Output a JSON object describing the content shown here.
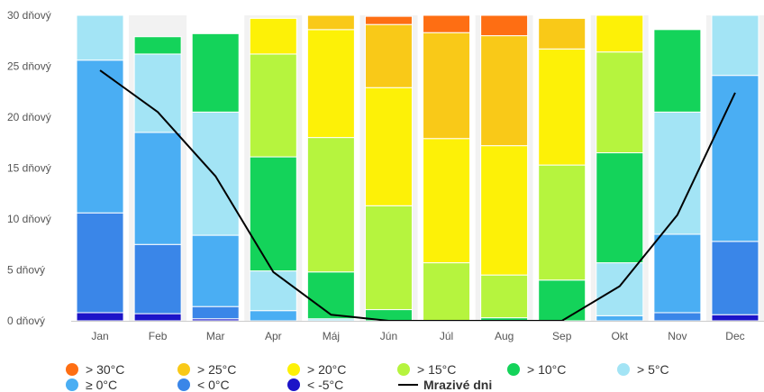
{
  "chart_data": {
    "type": "bar",
    "stacked": true,
    "categories": [
      "Jan",
      "Feb",
      "Mar",
      "Apr",
      "Máj",
      "Jún",
      "Júl",
      "Aug",
      "Sep",
      "Okt",
      "Nov",
      "Dec"
    ],
    "y_ticks": [
      "0 dňový",
      "5 dňový",
      "10 dňový",
      "15 dňový",
      "20 dňový",
      "25 dňový",
      "30 dňový"
    ],
    "ylim": [
      0,
      30
    ],
    "grid": false,
    "legend_position": "bottom",
    "series": [
      {
        "name": "< -5°C",
        "color": "#1c14c8",
        "values": [
          0.8,
          0.7,
          0.2,
          0,
          0,
          0,
          0,
          0,
          0,
          0,
          0,
          0.6
        ]
      },
      {
        "name": "< 0°C",
        "color": "#3a86e8",
        "values": [
          9.8,
          6.8,
          1.2,
          0,
          0,
          0,
          0,
          0,
          0,
          0,
          0.8,
          7.2
        ]
      },
      {
        "name": "≥ 0°C",
        "color": "#4aaef3",
        "values": [
          15.0,
          11.0,
          7.0,
          1.0,
          0,
          0,
          0,
          0,
          0,
          0.5,
          7.7,
          16.3
        ]
      },
      {
        "name": "> 5°C",
        "color": "#a3e4f5",
        "values": [
          4.4,
          7.7,
          12.1,
          3.9,
          0.2,
          0,
          0,
          0,
          0,
          5.2,
          12.0,
          5.9
        ]
      },
      {
        "name": "> 10°C",
        "color": "#14d35a",
        "values": [
          0,
          1.7,
          7.7,
          11.2,
          4.6,
          1.1,
          0,
          0.3,
          4.0,
          10.8,
          8.1,
          0
        ]
      },
      {
        "name": "> 15°C",
        "color": "#b6f43e",
        "values": [
          0,
          0,
          0,
          10.1,
          13.2,
          10.2,
          5.7,
          4.2,
          11.3,
          9.9,
          0,
          0
        ]
      },
      {
        "name": "> 20°C",
        "color": "#fdf107",
        "values": [
          0,
          0,
          0,
          3.5,
          10.6,
          11.6,
          12.2,
          12.7,
          11.4,
          3.6,
          0,
          0
        ]
      },
      {
        "name": "> 25°C",
        "color": "#f9c918",
        "values": [
          0,
          0,
          0,
          0,
          1.4,
          6.2,
          10.4,
          10.8,
          3.0,
          0,
          0,
          0
        ]
      },
      {
        "name": "> 30°C",
        "color": "#fe6e13",
        "values": [
          0,
          0,
          0,
          0,
          0,
          0.8,
          1.7,
          2.0,
          0,
          0,
          0,
          0
        ]
      }
    ],
    "line_series": {
      "name": "Mrazivé dni",
      "color": "#000000",
      "values": [
        24.6,
        20.5,
        14.2,
        4.8,
        0.6,
        0,
        0,
        0,
        0,
        3.4,
        10.4,
        22.4
      ]
    },
    "legend": [
      {
        "label": "> 30°C",
        "color": "#fe6e13",
        "kind": "dot"
      },
      {
        "label": "> 25°C",
        "color": "#f9c918",
        "kind": "dot"
      },
      {
        "label": "> 20°C",
        "color": "#fdf107",
        "kind": "dot"
      },
      {
        "label": "> 15°C",
        "color": "#b6f43e",
        "kind": "dot"
      },
      {
        "label": "> 10°C",
        "color": "#14d35a",
        "kind": "dot"
      },
      {
        "label": "> 5°C",
        "color": "#a3e4f5",
        "kind": "dot"
      },
      {
        "label": "≥ 0°C",
        "color": "#4aaef3",
        "kind": "dot"
      },
      {
        "label": "< 0°C",
        "color": "#3a86e8",
        "kind": "dot"
      },
      {
        "label": "< -5°C",
        "color": "#1c14c8",
        "kind": "dot"
      },
      {
        "label": "Mrazivé dni",
        "color": "#000000",
        "kind": "line"
      }
    ]
  }
}
